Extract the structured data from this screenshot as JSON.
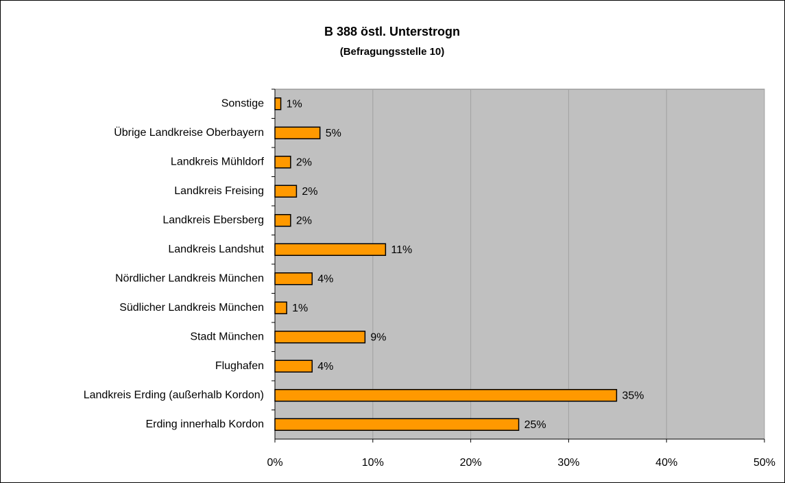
{
  "chart_data": {
    "type": "bar",
    "orientation": "horizontal",
    "title": "B 388 östl. Unterstrogn",
    "subtitle": "(Befragungsstelle 10)",
    "categories": [
      "Sonstige",
      "Übrige Landkreise Oberbayern",
      "Landkreis Mühldorf",
      "Landkreis Freising",
      "Landkreis Ebersberg",
      "Landkreis Landshut",
      "Nördlicher Landkreis München",
      "Südlicher Landkreis München",
      "Stadt München",
      "Flughafen",
      "Landkreis Erding (außerhalb Kordon)",
      "Erding innerhalb Kordon"
    ],
    "values": [
      0.6,
      4.6,
      1.6,
      2.2,
      1.6,
      11.3,
      3.8,
      1.2,
      9.2,
      3.8,
      34.9,
      24.9
    ],
    "value_labels": [
      "1%",
      "5%",
      "2%",
      "2%",
      "2%",
      "11%",
      "4%",
      "1%",
      "9%",
      "4%",
      "35%",
      "25%"
    ],
    "color": "#ff9900",
    "xlim": [
      0,
      50
    ],
    "xticks": [
      {
        "value": 0,
        "label": "0%"
      },
      {
        "value": 10,
        "label": "10%"
      },
      {
        "value": 20,
        "label": "20%"
      },
      {
        "value": 30,
        "label": "30%"
      },
      {
        "value": 40,
        "label": "40%"
      },
      {
        "value": 50,
        "label": "50%"
      }
    ],
    "grid": true
  }
}
